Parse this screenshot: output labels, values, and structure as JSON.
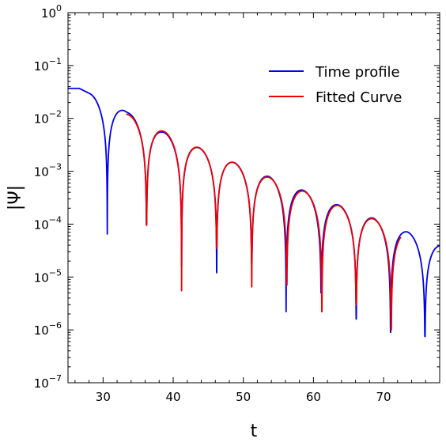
{
  "chart_data": {
    "type": "line",
    "xlabel": "t",
    "ylabel": "|Ψ|",
    "xlim": [
      25,
      78
    ],
    "ylim": [
      1e-07,
      1
    ],
    "yscale": "log",
    "xticks": [
      30,
      40,
      50,
      60,
      70
    ],
    "yticks": [
      {
        "value": 1,
        "exp": "0"
      },
      {
        "value": 0.1,
        "exp": "−1"
      },
      {
        "value": 0.01,
        "exp": "−2"
      },
      {
        "value": 0.001,
        "exp": "−3"
      },
      {
        "value": 0.0001,
        "exp": "−4"
      },
      {
        "value": 1e-05,
        "exp": "−5"
      },
      {
        "value": 1e-06,
        "exp": "−6"
      },
      {
        "value": 1e-07,
        "exp": "−7"
      }
    ],
    "ytick_base": "10",
    "legend_position": "upper-right",
    "grid": false,
    "series": [
      {
        "name": "Time profile",
        "color": "#0000ee",
        "t_start": 25,
        "t_end": 78,
        "peaks": [
          [
            26.6,
            0.037
          ],
          [
            33.0,
            0.014
          ],
          [
            38.3,
            0.0057
          ],
          [
            43.3,
            0.0029
          ],
          [
            48.3,
            0.00153
          ],
          [
            53.3,
            0.00083
          ],
          [
            58.3,
            0.00045
          ],
          [
            63.2,
            0.00024
          ],
          [
            68.2,
            0.000135
          ],
          [
            73.3,
            7.2e-05
          ],
          [
            78.0,
            4e-05
          ]
        ],
        "zeros": [
          [
            30.6,
            6.5e-05
          ],
          [
            36.2,
            0.0001
          ],
          [
            41.2,
            1.6e-05
          ],
          [
            46.2,
            1.2e-05
          ],
          [
            51.2,
            1.8e-05
          ],
          [
            56.1,
            2.2e-06
          ],
          [
            61.1,
            5e-06
          ],
          [
            66.1,
            1.6e-06
          ],
          [
            71.0,
            9e-07
          ],
          [
            75.9,
            7.5e-07
          ]
        ]
      },
      {
        "name": "Fitted Curve",
        "color": "#ee0000",
        "t_start": 33.3,
        "t_end": 72.5,
        "peaks": [
          [
            33.4,
            0.012
          ],
          [
            38.4,
            0.0059
          ],
          [
            43.4,
            0.0029
          ],
          [
            48.4,
            0.0015
          ],
          [
            53.4,
            0.00079
          ],
          [
            58.4,
            0.00043
          ],
          [
            63.4,
            0.00023
          ],
          [
            68.4,
            0.000128
          ],
          [
            73.0,
            7e-05
          ]
        ],
        "zeros": [
          [
            36.2,
            9.5e-05
          ],
          [
            41.2,
            5.5e-06
          ],
          [
            46.2,
            3.5e-05
          ],
          [
            51.2,
            6.5e-06
          ],
          [
            56.2,
            7e-06
          ],
          [
            61.2,
            2.2e-06
          ],
          [
            66.1,
            3e-06
          ],
          [
            71.1,
            1e-06
          ]
        ]
      }
    ]
  }
}
